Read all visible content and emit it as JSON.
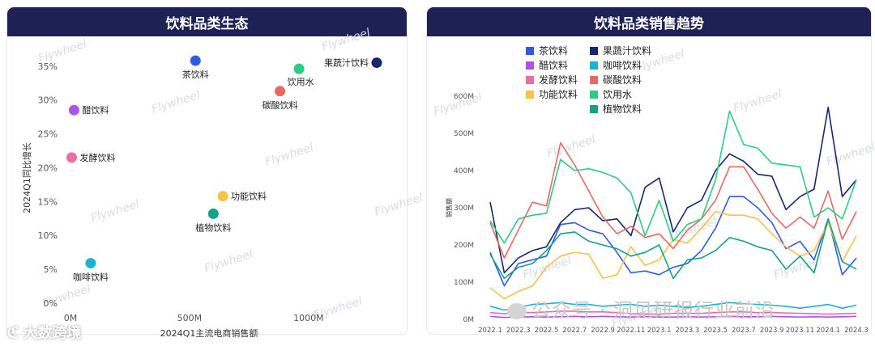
{
  "left_panel": {
    "title": "饮料品类生态"
  },
  "right_panel": {
    "title": "饮料品类销售趋势"
  },
  "watermark": "Flywheel",
  "footer": {
    "brand": "大数跨境",
    "account": "公众号 · 洞见研报行业前沿"
  },
  "colors": {
    "茶饮料": "#2f5be0",
    "醋饮料": "#a855e8",
    "发酵饮料": "#e86fa0",
    "功能饮料": "#f5c346",
    "果蔬汁饮料": "#16276e",
    "咖啡饮料": "#19b4d2",
    "碳酸饮料": "#e66a62",
    "饮用水": "#2ecb83",
    "植物饮料": "#13a188"
  },
  "chart_data": [
    {
      "type": "scatter",
      "title": "饮料品类生态",
      "xlabel": "2024Q1主流电商销售额",
      "ylabel": "2024Q1同比增长",
      "xlim": [
        0,
        1300
      ],
      "ylim": [
        0,
        37
      ],
      "x_ticks": [
        "0M",
        "500M",
        "1000M"
      ],
      "x_tick_values": [
        0,
        500,
        1000
      ],
      "y_ticks": [
        "0%",
        "5%",
        "10%",
        "15%",
        "20%",
        "25%",
        "30%",
        "35%"
      ],
      "y_tick_values": [
        0,
        5,
        10,
        15,
        20,
        25,
        30,
        35
      ],
      "grid": false,
      "points": [
        {
          "name": "茶饮料",
          "x": 525,
          "y": 35.8,
          "label_pos": "below"
        },
        {
          "name": "醋饮料",
          "x": 15,
          "y": 28.5,
          "label_pos": "right"
        },
        {
          "name": "发酵饮料",
          "x": 5,
          "y": 21.5,
          "label_pos": "right"
        },
        {
          "name": "咖啡饮料",
          "x": 85,
          "y": 5.9,
          "label_pos": "below"
        },
        {
          "name": "功能饮料",
          "x": 640,
          "y": 15.8,
          "label_pos": "right"
        },
        {
          "name": "植物饮料",
          "x": 600,
          "y": 13.2,
          "label_pos": "below"
        },
        {
          "name": "饮用水",
          "x": 960,
          "y": 34.6,
          "label_pos": "below-right"
        },
        {
          "name": "碳酸饮料",
          "x": 880,
          "y": 31.3,
          "label_pos": "below"
        },
        {
          "name": "果蔬汁饮料",
          "x": 1320,
          "y": 35.5,
          "label_pos": "left"
        }
      ]
    },
    {
      "type": "line",
      "title": "饮料品类销售趋势",
      "ylabel": "销售额",
      "ylim": [
        0,
        600
      ],
      "y_ticks": [
        "0M",
        "100M",
        "200M",
        "300M",
        "400M",
        "500M",
        "600M"
      ],
      "y_tick_values": [
        0,
        100,
        200,
        300,
        400,
        500,
        600
      ],
      "x_ticks": [
        "2022.1",
        "2022.3",
        "2022.5",
        "2022.7",
        "2022.9",
        "2022.11",
        "2023.1",
        "2023.3",
        "2023.5",
        "2023.7",
        "2023.9",
        "2023.11",
        "2024.1",
        "2024.3"
      ],
      "grid": false,
      "legend_position": "top-left",
      "x": [
        "2022.1",
        "2022.2",
        "2022.3",
        "2022.4",
        "2022.5",
        "2022.6",
        "2022.7",
        "2022.8",
        "2022.9",
        "2022.10",
        "2022.11",
        "2022.12",
        "2023.1",
        "2023.2",
        "2023.3",
        "2023.4",
        "2023.5",
        "2023.6",
        "2023.7",
        "2023.8",
        "2023.9",
        "2023.10",
        "2023.11",
        "2023.12",
        "2024.1",
        "2024.2",
        "2024.3"
      ],
      "series": [
        {
          "name": "茶饮料",
          "values": [
            180,
            90,
            150,
            160,
            170,
            255,
            260,
            240,
            230,
            180,
            125,
            130,
            120,
            140,
            150,
            185,
            245,
            330,
            330,
            300,
            260,
            190,
            210,
            160,
            270,
            120,
            165
          ]
        },
        {
          "name": "醋饮料",
          "values": [
            8,
            5,
            6,
            7,
            6,
            7,
            8,
            7,
            8,
            7,
            6,
            7,
            6,
            6,
            7,
            6,
            7,
            8,
            7,
            7,
            8,
            7,
            6,
            7,
            6,
            7,
            8
          ]
        },
        {
          "name": "发酵饮料",
          "values": [
            18,
            15,
            18,
            18,
            20,
            22,
            22,
            20,
            20,
            18,
            15,
            14,
            14,
            16,
            16,
            16,
            18,
            20,
            20,
            18,
            18,
            17,
            16,
            15,
            14,
            15,
            16
          ]
        },
        {
          "name": "功能饮料",
          "values": [
            85,
            55,
            75,
            90,
            140,
            170,
            180,
            175,
            110,
            120,
            195,
            145,
            160,
            215,
            205,
            245,
            290,
            280,
            280,
            270,
            230,
            195,
            170,
            185,
            260,
            155,
            225
          ]
        },
        {
          "name": "果蔬汁饮料",
          "values": [
            315,
            125,
            165,
            185,
            195,
            260,
            295,
            300,
            265,
            270,
            225,
            355,
            380,
            235,
            300,
            320,
            400,
            445,
            425,
            390,
            385,
            295,
            330,
            350,
            570,
            330,
            375
          ]
        },
        {
          "name": "咖啡饮料",
          "values": [
            35,
            25,
            32,
            40,
            42,
            45,
            40,
            40,
            35,
            38,
            40,
            35,
            38,
            35,
            32,
            35,
            40,
            45,
            42,
            40,
            38,
            35,
            30,
            35,
            40,
            30,
            38
          ]
        },
        {
          "name": "碳酸饮料",
          "values": [
            260,
            165,
            240,
            315,
            305,
            475,
            415,
            345,
            275,
            230,
            250,
            220,
            230,
            190,
            240,
            270,
            320,
            410,
            410,
            350,
            285,
            245,
            275,
            245,
            345,
            215,
            290
          ]
        },
        {
          "name": "饮用水",
          "values": [
            265,
            205,
            270,
            280,
            285,
            430,
            400,
            405,
            395,
            380,
            340,
            225,
            320,
            210,
            255,
            270,
            375,
            560,
            470,
            460,
            420,
            415,
            410,
            275,
            300,
            270,
            375
          ]
        },
        {
          "name": "植物饮料",
          "values": [
            175,
            110,
            140,
            150,
            185,
            230,
            235,
            210,
            200,
            190,
            170,
            180,
            200,
            110,
            160,
            165,
            185,
            220,
            210,
            195,
            185,
            135,
            170,
            125,
            270,
            155,
            135
          ]
        }
      ]
    }
  ]
}
